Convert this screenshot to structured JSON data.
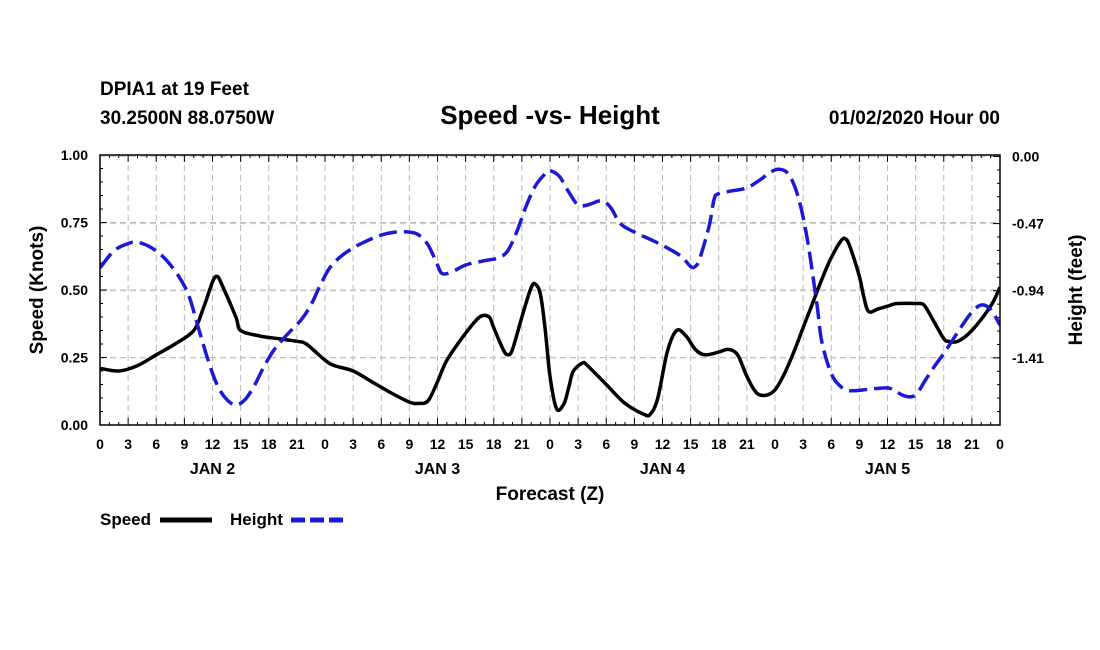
{
  "header": {
    "station": "DPIA1 at 19 Feet",
    "coords": "30.2500N 88.0750W",
    "title": "Speed -vs- Height",
    "datetime": "01/02/2020 Hour 00"
  },
  "legend": {
    "speed_label": "Speed",
    "height_label": "Height"
  },
  "chart_data": {
    "type": "line",
    "title": "Speed -vs- Height",
    "xlabel": "Forecast (Z)",
    "ylabel_left": "Speed (Knots)",
    "ylabel_right": "Height (feet)",
    "x_range": [
      0,
      96
    ],
    "x_ticks": [
      0,
      3,
      6,
      9,
      12,
      15,
      18,
      21,
      24,
      27,
      30,
      33,
      36,
      39,
      42,
      45,
      48,
      51,
      54,
      57,
      60,
      63,
      66,
      69,
      72,
      75,
      78,
      81,
      84,
      87,
      90,
      93,
      96
    ],
    "x_tick_labels": [
      "0",
      "3",
      "6",
      "9",
      "12",
      "15",
      "18",
      "21",
      "0",
      "3",
      "6",
      "9",
      "12",
      "15",
      "18",
      "21",
      "0",
      "3",
      "6",
      "9",
      "12",
      "15",
      "18",
      "21",
      "0",
      "3",
      "6",
      "9",
      "12",
      "15",
      "18",
      "21",
      "0"
    ],
    "day_labels": [
      {
        "label": "JAN 2",
        "x": 12
      },
      {
        "label": "JAN 3",
        "x": 36
      },
      {
        "label": "JAN 4",
        "x": 60
      },
      {
        "label": "JAN 5",
        "x": 84
      }
    ],
    "y_left": {
      "range": [
        0,
        1
      ],
      "ticks": [
        0,
        0.25,
        0.5,
        0.75,
        1.0
      ],
      "tick_labels": [
        "0.00",
        "0.25",
        "0.50",
        "0.75",
        "1.00"
      ]
    },
    "y_right": {
      "range": [
        -1.88,
        0.01
      ],
      "ticks": [
        0.0,
        -0.47,
        -0.94,
        -1.41
      ],
      "tick_labels": [
        "0.00",
        "-0.47",
        "-0.94",
        "-1.41"
      ]
    },
    "grid": true,
    "series": [
      {
        "name": "Speed",
        "axis": "left",
        "color": "#000000",
        "style": "solid",
        "points": [
          [
            0,
            0.21
          ],
          [
            2,
            0.2
          ],
          [
            4,
            0.22
          ],
          [
            6,
            0.26
          ],
          [
            8,
            0.3
          ],
          [
            10,
            0.35
          ],
          [
            11,
            0.43
          ],
          [
            12,
            0.53
          ],
          [
            12.5,
            0.55
          ],
          [
            13,
            0.52
          ],
          [
            14.5,
            0.4
          ],
          [
            15,
            0.35
          ],
          [
            17,
            0.33
          ],
          [
            19,
            0.32
          ],
          [
            21,
            0.31
          ],
          [
            22,
            0.3
          ],
          [
            24,
            0.24
          ],
          [
            25,
            0.22
          ],
          [
            27,
            0.2
          ],
          [
            29,
            0.16
          ],
          [
            31,
            0.12
          ],
          [
            33,
            0.085
          ],
          [
            34,
            0.08
          ],
          [
            35,
            0.09
          ],
          [
            36,
            0.16
          ],
          [
            37,
            0.24
          ],
          [
            39,
            0.34
          ],
          [
            40.5,
            0.4
          ],
          [
            41.5,
            0.4
          ],
          [
            42,
            0.36
          ],
          [
            43,
            0.28
          ],
          [
            43.5,
            0.26
          ],
          [
            44,
            0.28
          ],
          [
            45,
            0.4
          ],
          [
            46,
            0.51
          ],
          [
            46.5,
            0.52
          ],
          [
            47,
            0.48
          ],
          [
            47.5,
            0.35
          ],
          [
            48,
            0.18
          ],
          [
            48.7,
            0.06
          ],
          [
            49.5,
            0.08
          ],
          [
            50,
            0.14
          ],
          [
            50.5,
            0.2
          ],
          [
            51.5,
            0.23
          ],
          [
            52,
            0.22
          ],
          [
            54,
            0.15
          ],
          [
            56,
            0.08
          ],
          [
            58,
            0.04
          ],
          [
            58.7,
            0.04
          ],
          [
            59.5,
            0.1
          ],
          [
            60.5,
            0.27
          ],
          [
            61.5,
            0.35
          ],
          [
            62.5,
            0.33
          ],
          [
            63.5,
            0.28
          ],
          [
            64.5,
            0.26
          ],
          [
            66,
            0.27
          ],
          [
            67,
            0.28
          ],
          [
            68,
            0.26
          ],
          [
            69,
            0.18
          ],
          [
            70,
            0.12
          ],
          [
            71,
            0.11
          ],
          [
            72,
            0.13
          ],
          [
            73,
            0.19
          ],
          [
            74,
            0.27
          ],
          [
            75,
            0.36
          ],
          [
            76,
            0.45
          ],
          [
            77,
            0.54
          ],
          [
            78,
            0.62
          ],
          [
            79,
            0.68
          ],
          [
            79.5,
            0.69
          ],
          [
            80,
            0.66
          ],
          [
            81,
            0.55
          ],
          [
            81.5,
            0.47
          ],
          [
            82,
            0.42
          ],
          [
            83,
            0.43
          ],
          [
            84,
            0.44
          ],
          [
            85,
            0.45
          ],
          [
            87,
            0.45
          ],
          [
            87.5,
            0.45
          ],
          [
            88,
            0.44
          ],
          [
            89,
            0.38
          ],
          [
            90,
            0.32
          ],
          [
            90.5,
            0.31
          ],
          [
            91.5,
            0.31
          ],
          [
            93,
            0.35
          ],
          [
            95,
            0.44
          ],
          [
            96,
            0.51
          ]
        ]
      },
      {
        "name": "Height",
        "axis": "right",
        "color": "#1a1ad6",
        "style": "dashed",
        "points": [
          [
            0,
            -0.78
          ],
          [
            1.5,
            -0.66
          ],
          [
            3,
            -0.61
          ],
          [
            4,
            -0.6
          ],
          [
            5.5,
            -0.64
          ],
          [
            7,
            -0.72
          ],
          [
            8.5,
            -0.85
          ],
          [
            9.5,
            -0.98
          ],
          [
            10.5,
            -1.2
          ],
          [
            11.5,
            -1.42
          ],
          [
            12.5,
            -1.6
          ],
          [
            13.5,
            -1.7
          ],
          [
            14.5,
            -1.74
          ],
          [
            15.5,
            -1.7
          ],
          [
            16.5,
            -1.6
          ],
          [
            17.5,
            -1.47
          ],
          [
            18.5,
            -1.36
          ],
          [
            19.5,
            -1.28
          ],
          [
            20.5,
            -1.21
          ],
          [
            21.5,
            -1.14
          ],
          [
            22.5,
            -1.04
          ],
          [
            23.5,
            -0.9
          ],
          [
            24.5,
            -0.78
          ],
          [
            25.5,
            -0.71
          ],
          [
            27,
            -0.64
          ],
          [
            28.5,
            -0.59
          ],
          [
            30,
            -0.55
          ],
          [
            31.5,
            -0.53
          ],
          [
            33,
            -0.53
          ],
          [
            34,
            -0.55
          ],
          [
            35,
            -0.62
          ],
          [
            36,
            -0.76
          ],
          [
            36.5,
            -0.82
          ],
          [
            37.5,
            -0.81
          ],
          [
            39,
            -0.76
          ],
          [
            41,
            -0.73
          ],
          [
            42.5,
            -0.71
          ],
          [
            43.5,
            -0.66
          ],
          [
            44.5,
            -0.52
          ],
          [
            45.5,
            -0.34
          ],
          [
            46.5,
            -0.2
          ],
          [
            47.5,
            -0.12
          ],
          [
            48,
            -0.1
          ],
          [
            49,
            -0.14
          ],
          [
            50,
            -0.25
          ],
          [
            51,
            -0.34
          ],
          [
            52,
            -0.34
          ],
          [
            53.5,
            -0.31
          ],
          [
            54.5,
            -0.36
          ],
          [
            55.5,
            -0.47
          ],
          [
            57,
            -0.53
          ],
          [
            59,
            -0.59
          ],
          [
            60.5,
            -0.64
          ],
          [
            62,
            -0.7
          ],
          [
            63,
            -0.77
          ],
          [
            63.5,
            -0.77
          ],
          [
            64,
            -0.71
          ],
          [
            65,
            -0.48
          ],
          [
            65.5,
            -0.3
          ],
          [
            66,
            -0.26
          ],
          [
            67.5,
            -0.24
          ],
          [
            69,
            -0.22
          ],
          [
            70.5,
            -0.16
          ],
          [
            71.5,
            -0.11
          ],
          [
            72.5,
            -0.09
          ],
          [
            73.5,
            -0.13
          ],
          [
            74.5,
            -0.29
          ],
          [
            75.5,
            -0.6
          ],
          [
            76.5,
            -1.05
          ],
          [
            77,
            -1.3
          ],
          [
            78,
            -1.52
          ],
          [
            79,
            -1.61
          ],
          [
            80,
            -1.64
          ],
          [
            82,
            -1.63
          ],
          [
            84,
            -1.62
          ],
          [
            85,
            -1.65
          ],
          [
            86,
            -1.68
          ],
          [
            87,
            -1.67
          ],
          [
            88,
            -1.57
          ],
          [
            89,
            -1.47
          ],
          [
            90,
            -1.38
          ],
          [
            91,
            -1.28
          ],
          [
            92,
            -1.18
          ],
          [
            93,
            -1.09
          ],
          [
            94,
            -1.04
          ],
          [
            95,
            -1.07
          ],
          [
            96,
            -1.18
          ]
        ]
      }
    ]
  }
}
